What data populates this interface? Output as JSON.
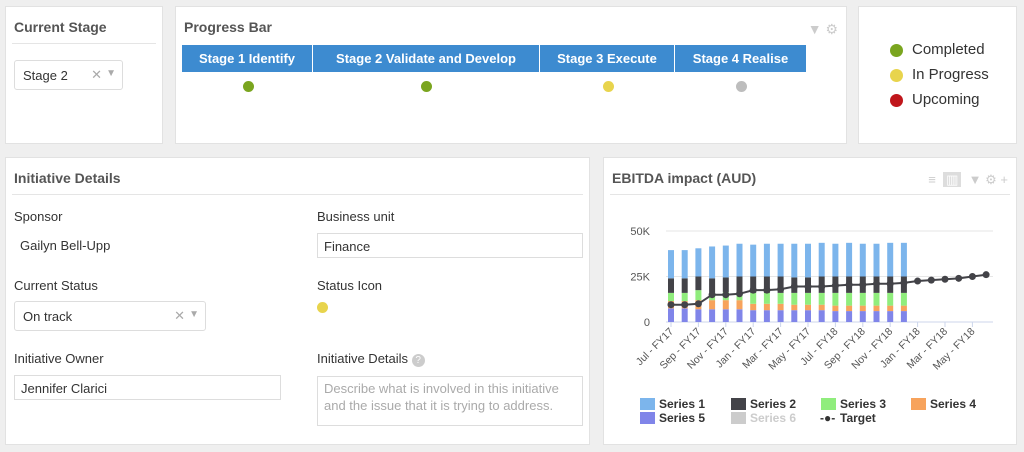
{
  "current_stage": {
    "title": "Current Stage",
    "value": "Stage 2",
    "clear": "✕",
    "caret": "▼"
  },
  "progress_bar": {
    "title": "Progress Bar",
    "stages": [
      {
        "label": "Stage 1 Identify",
        "status_color": "#7aa51f"
      },
      {
        "label": "Stage 2 Validate and Develop",
        "status_color": "#7aa51f"
      },
      {
        "label": "Stage 3 Execute",
        "status_color": "#e8d44d"
      },
      {
        "label": "Stage 4 Realise",
        "status_color": "#bdbdbd"
      }
    ]
  },
  "status_legend": [
    {
      "label": "Completed",
      "color": "#7aa51f"
    },
    {
      "label": "In Progress",
      "color": "#e8d44d"
    },
    {
      "label": "Upcoming",
      "color": "#c0161b"
    }
  ],
  "initiative": {
    "title": "Initiative Details",
    "sponsor_label": "Sponsor",
    "sponsor": "Gailyn Bell-Upp",
    "business_unit_label": "Business unit",
    "business_unit": "Finance",
    "status_label": "Current Status",
    "status": "On track",
    "status_icon_label": "Status Icon",
    "status_icon_color": "#e8d44d",
    "owner_label": "Initiative Owner",
    "owner": "Jennifer Clarici",
    "details_label": "Initiative Details",
    "details_placeholder": "Describe what is involved in this initiative and the issue that it is trying to address.",
    "help": "?"
  },
  "ebitda": {
    "title": "EBITDA impact (AUD)"
  },
  "chart_data": {
    "type": "bar",
    "stacked": true,
    "title": "EBITDA impact (AUD)",
    "ylim": [
      0,
      50000
    ],
    "yticks": [
      "0",
      "25K",
      "50K"
    ],
    "x_tick_labels": [
      "Jul - FY17",
      "Sep - FY17",
      "Nov - FY17",
      "Jan - FY17",
      "Mar - FY17",
      "May - FY17",
      "Jul - FY18",
      "Sep - FY18",
      "Nov - FY18",
      "Jan - FY18",
      "Mar - FY18",
      "May - FY18"
    ],
    "n_periods": 24,
    "series": [
      {
        "name": "Series 1",
        "color": "#7cb5ec",
        "values": [
          15.5,
          15.5,
          15.5,
          17.5,
          17.5,
          18,
          17.5,
          18,
          18,
          18.5,
          18.5,
          18.5,
          18,
          18.5,
          18,
          18,
          18.5,
          18.5
        ]
      },
      {
        "name": "Series 2",
        "color": "#434348",
        "values": [
          8,
          8,
          7.5,
          8,
          8,
          9,
          9,
          9,
          9,
          8.5,
          8.5,
          9,
          9,
          9,
          9,
          9,
          9,
          9
        ]
      },
      {
        "name": "Series 3",
        "color": "#90ed7d",
        "values": [
          4.5,
          4.5,
          5.5,
          4,
          4.5,
          4,
          6,
          6,
          6,
          6.5,
          6.5,
          6.5,
          7,
          7,
          7,
          7,
          7,
          7
        ]
      },
      {
        "name": "Series 4",
        "color": "#f7a35c",
        "values": [
          4,
          4,
          5,
          5,
          5,
          5,
          3.5,
          3.5,
          3.5,
          3,
          3,
          3,
          3,
          3,
          3,
          3,
          3,
          3
        ]
      },
      {
        "name": "Series 5",
        "color": "#8085e9",
        "values": [
          7.5,
          7.5,
          7,
          7,
          7,
          7,
          6.5,
          6.5,
          6.5,
          6.5,
          6.5,
          6.5,
          6,
          6,
          6,
          6,
          6,
          6
        ]
      },
      {
        "name": "Series 6",
        "color": "#cccccc",
        "values": []
      }
    ],
    "target": {
      "name": "Target",
      "color": "#434348",
      "values": [
        9.5,
        9.5,
        10,
        15,
        15,
        15.5,
        17.5,
        17.5,
        18,
        19.5,
        19.5,
        19.5,
        20,
        20.5,
        20.5,
        21,
        21,
        21.5,
        22.5,
        23,
        23.5,
        24,
        25,
        26
      ]
    },
    "units": "thousands AUD",
    "legend": "bottom"
  }
}
